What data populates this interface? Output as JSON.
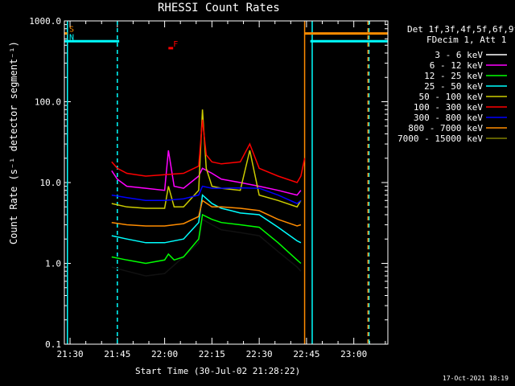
{
  "chart_data": {
    "type": "line",
    "title": "RHESSI Count Rates",
    "xlabel": "Start Time (30-Jul-02 21:28:22)",
    "ylabel": "Count Rate (s⁻¹ detector segment⁻¹)",
    "ylog": true,
    "ylim": [
      0.1,
      1000
    ],
    "xlim_minutes": [
      21.47,
      23.18
    ],
    "x_unit": "hours (UT)",
    "x_ticks": [
      "21:30",
      "21:45",
      "22:00",
      "22:15",
      "22:30",
      "22:45",
      "23:00"
    ],
    "y_ticks": [
      "0.1",
      "1.0",
      "10.0",
      "100.0",
      "1000.0"
    ],
    "legend_header": [
      "Det 1f,3f,4f,5f,6f,9f,",
      "FDecim 1, Att 1"
    ],
    "legend_position": "right",
    "timestamp": "17-Oct-2021 18:19",
    "flags": [
      {
        "label": "S",
        "color": "#ff8c00",
        "level": 700,
        "x_start": 21.47,
        "x_end": 21.485
      },
      {
        "label": "N",
        "color": "#00ffff",
        "level": 560,
        "x_start": 21.47,
        "x_end": 21.76
      },
      {
        "label": "F",
        "color": "#ff0000",
        "level": 460,
        "x_start": 22.02,
        "x_end": 22.045
      }
    ],
    "after_flags": [
      {
        "color": "#ff8c00",
        "level": 700,
        "x_start": 22.74,
        "x_end": 23.18
      },
      {
        "color": "#00ffff",
        "level": 560,
        "x_start": 22.77,
        "x_end": 23.18
      }
    ],
    "vertical_lines": [
      {
        "x": 21.486,
        "color": "#00ffff",
        "style": "solid"
      },
      {
        "x": 21.75,
        "color": "#00ffff",
        "style": "dash"
      },
      {
        "x": 22.74,
        "color": "#ff8c00",
        "style": "solid"
      },
      {
        "x": 22.78,
        "color": "#00ffff",
        "style": "solid"
      },
      {
        "x": 23.08,
        "color": "#00ffff",
        "style": "dash"
      },
      {
        "x": 23.075,
        "color": "#ff8c00",
        "style": "dash"
      }
    ],
    "series": [
      {
        "name": "3 - 6 keV",
        "color": "#000000",
        "x": [
          21.72,
          21.8,
          21.9,
          22.0,
          22.1,
          22.18,
          22.2,
          22.25,
          22.3,
          22.35,
          22.4,
          22.5,
          22.6,
          22.7,
          22.72
        ],
        "y": [
          0.9,
          0.8,
          0.7,
          0.75,
          1.2,
          1.8,
          3.5,
          3.0,
          2.6,
          2.5,
          2.4,
          2.2,
          1.4,
          0.9,
          0.8
        ]
      },
      {
        "name": "6 - 12 keV",
        "color": "#ff00ff",
        "x": [
          21.72,
          21.75,
          21.8,
          21.9,
          22.0,
          22.02,
          22.05,
          22.1,
          22.18,
          22.2,
          22.25,
          22.3,
          22.4,
          22.5,
          22.6,
          22.7,
          22.72
        ],
        "y": [
          14,
          11,
          9,
          8.5,
          8,
          25,
          9,
          8.5,
          12,
          15,
          13,
          11,
          10,
          9,
          8,
          7,
          8
        ]
      },
      {
        "name": "12 - 25 keV",
        "color": "#00ff00",
        "x": [
          21.72,
          21.8,
          21.9,
          22.0,
          22.02,
          22.05,
          22.1,
          22.18,
          22.2,
          22.25,
          22.3,
          22.4,
          22.5,
          22.6,
          22.7,
          22.72
        ],
        "y": [
          1.2,
          1.1,
          1.0,
          1.1,
          1.3,
          1.1,
          1.2,
          2.0,
          4.0,
          3.5,
          3.2,
          3.0,
          2.8,
          1.8,
          1.1,
          1.0
        ]
      },
      {
        "name": "25 - 50 keV",
        "color": "#00ffff",
        "x": [
          21.72,
          21.8,
          21.9,
          22.0,
          22.1,
          22.18,
          22.2,
          22.25,
          22.3,
          22.35,
          22.4,
          22.5,
          22.6,
          22.7,
          22.72
        ],
        "y": [
          2.2,
          2.0,
          1.8,
          1.8,
          2.0,
          3.2,
          7,
          5.5,
          4.8,
          4.5,
          4.2,
          4.0,
          2.8,
          1.9,
          1.8
        ]
      },
      {
        "name": "50 - 100 keV",
        "color": "#cccc00",
        "x": [
          21.72,
          21.8,
          21.9,
          22.0,
          22.02,
          22.05,
          22.1,
          22.18,
          22.2,
          22.22,
          22.25,
          22.3,
          22.4,
          22.45,
          22.5,
          22.6,
          22.7,
          22.72
        ],
        "y": [
          5.5,
          5,
          4.8,
          4.8,
          9,
          5,
          5,
          8,
          80,
          15,
          9,
          8.5,
          8,
          25,
          7,
          6,
          5,
          6
        ]
      },
      {
        "name": "100 - 300 keV",
        "color": "#ff0000",
        "x": [
          21.72,
          21.75,
          21.8,
          21.9,
          22.0,
          22.1,
          22.18,
          22.2,
          22.22,
          22.25,
          22.3,
          22.4,
          22.45,
          22.5,
          22.6,
          22.7,
          22.72,
          22.74
        ],
        "y": [
          18,
          15,
          13,
          12,
          12.5,
          13,
          16,
          60,
          22,
          18,
          17,
          18,
          30,
          15,
          12,
          10,
          12,
          20
        ]
      },
      {
        "name": "300 - 800 keV",
        "color": "#0000ff",
        "x": [
          21.72,
          21.8,
          21.9,
          22.0,
          22.1,
          22.18,
          22.2,
          22.25,
          22.3,
          22.4,
          22.5,
          22.6,
          22.7,
          22.72
        ],
        "y": [
          7,
          6.5,
          6,
          6,
          6.3,
          7,
          9,
          8.5,
          8.5,
          8.6,
          8.5,
          7,
          5.5,
          6
        ]
      },
      {
        "name": "800 - 7000 keV",
        "color": "#ff8c00",
        "x": [
          21.72,
          21.8,
          21.9,
          22.0,
          22.1,
          22.18,
          22.2,
          22.25,
          22.3,
          22.4,
          22.5,
          22.6,
          22.7,
          22.72
        ],
        "y": [
          3.2,
          3,
          2.9,
          2.9,
          3.1,
          3.8,
          6,
          5,
          5,
          4.8,
          4.5,
          3.5,
          2.9,
          3
        ]
      },
      {
        "name": "7000 - 15000 keV",
        "color": "#808000",
        "x": [],
        "y": []
      }
    ]
  }
}
